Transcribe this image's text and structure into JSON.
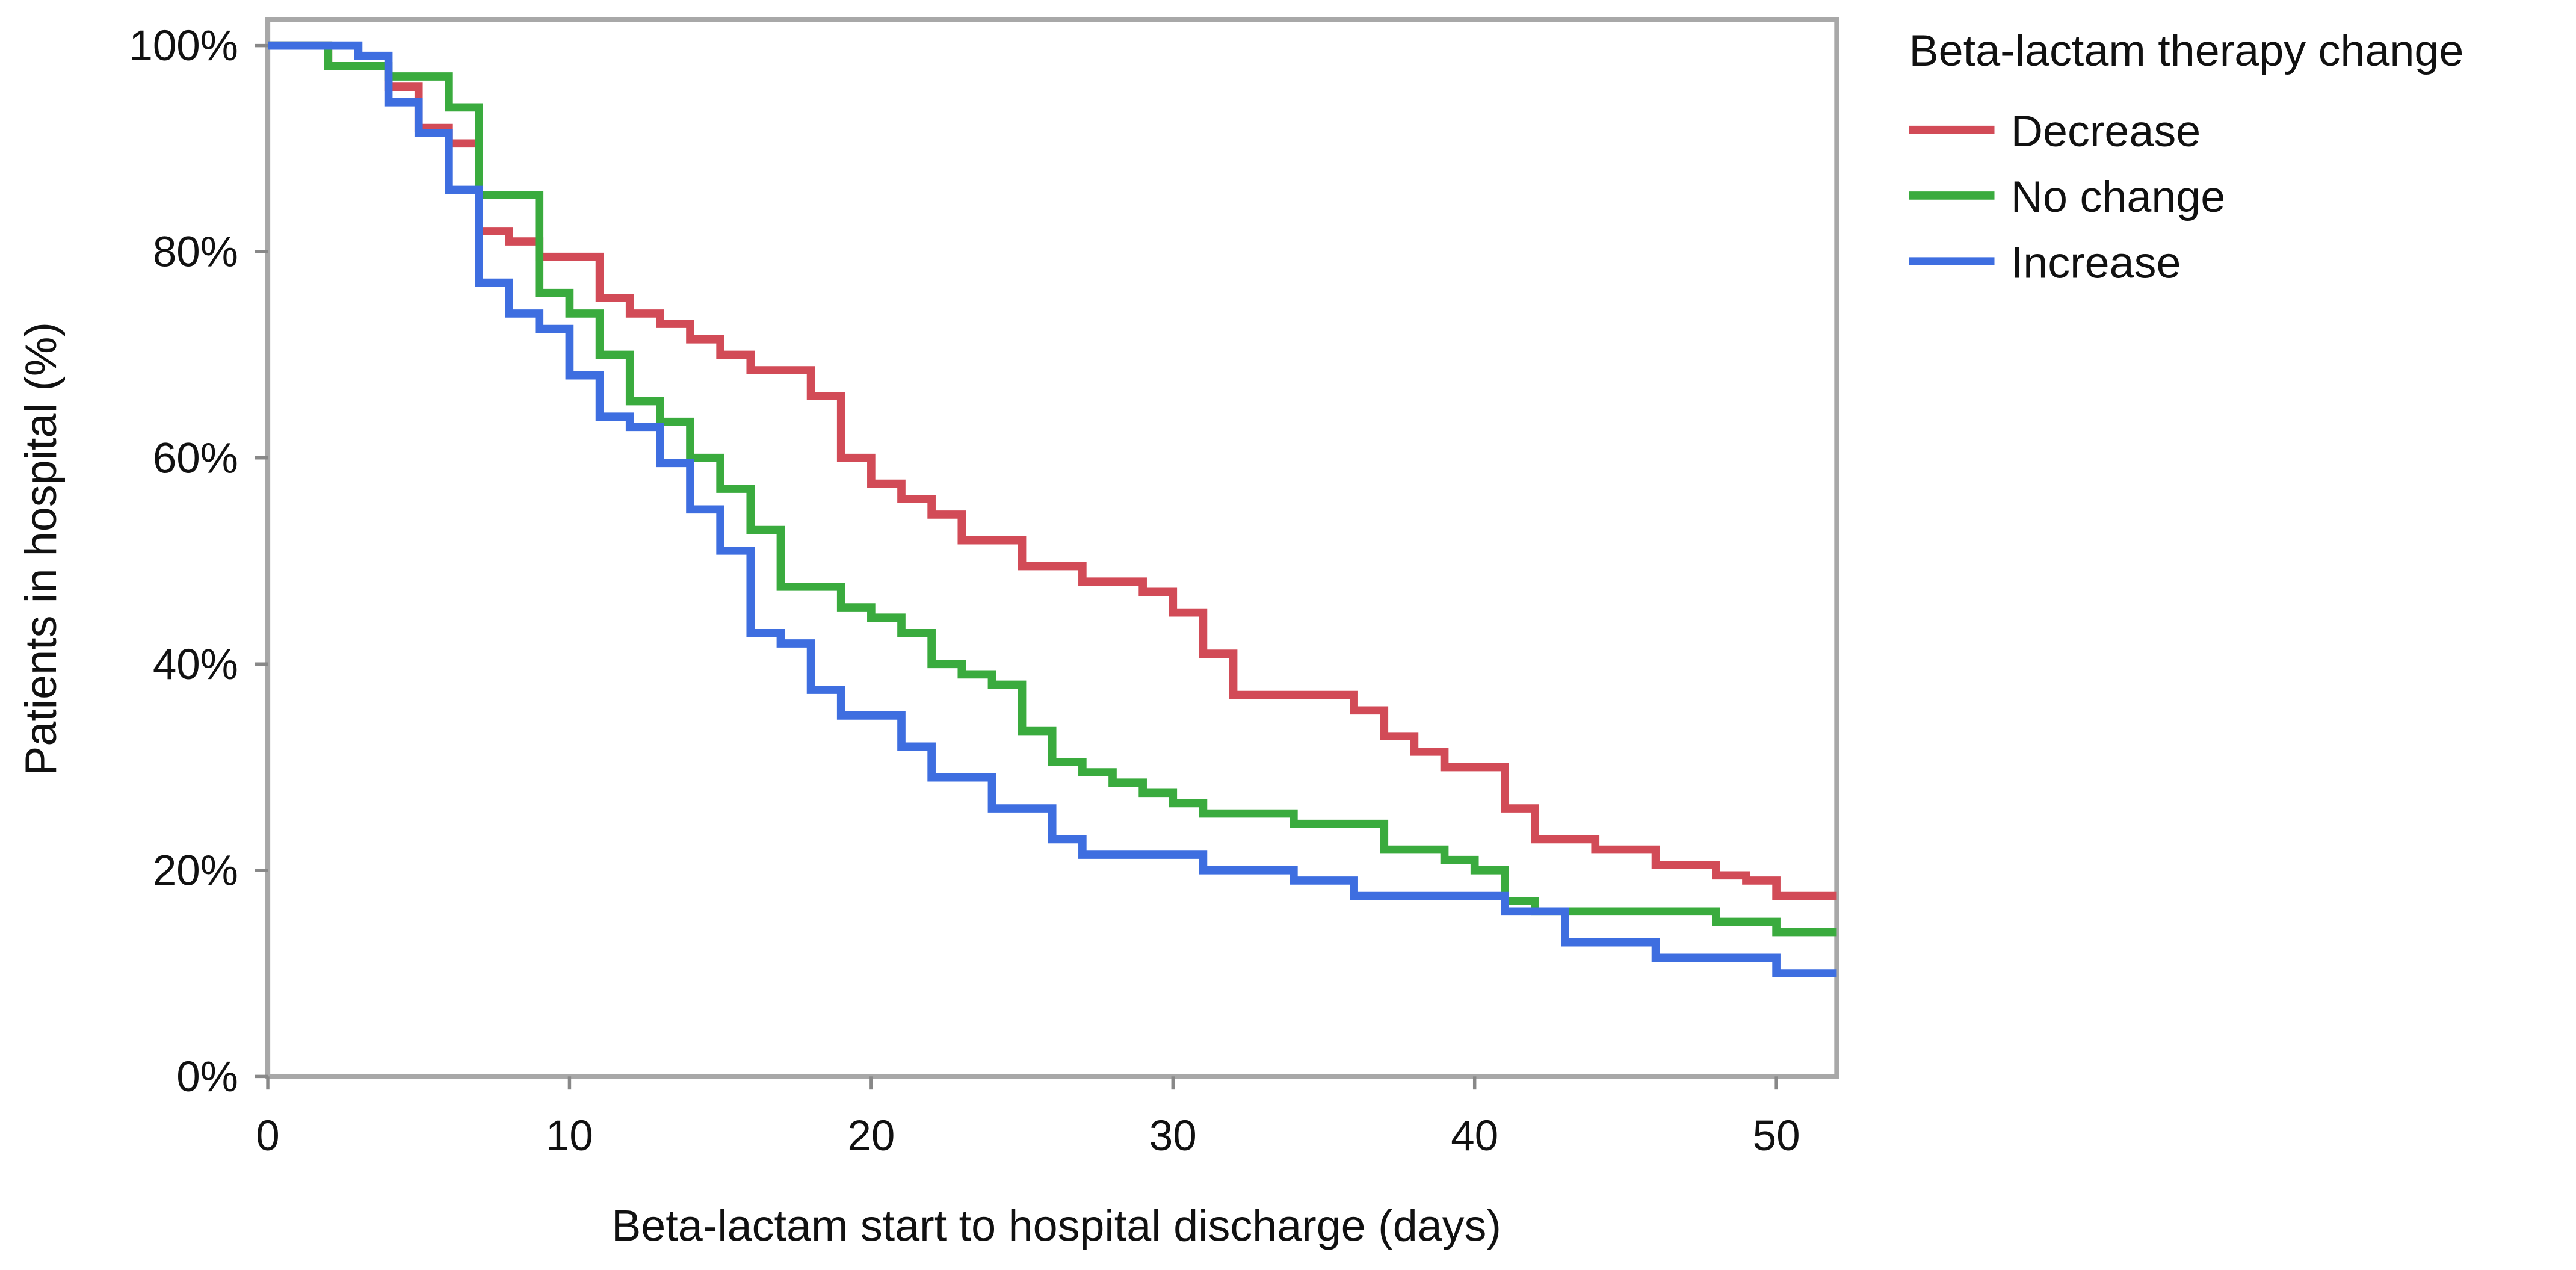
{
  "chart_data": {
    "type": "step",
    "xlabel": "Beta-lactam start to hospital discharge (days)",
    "ylabel": "Patients in hospital (%)",
    "legend_title": "Beta-lactam therapy change",
    "legend": "right",
    "xlim": [
      0,
      52
    ],
    "ylim": [
      0,
      102.5
    ],
    "xticks": [
      0,
      10,
      20,
      30,
      40,
      50
    ],
    "yticks": [
      {
        "value": 0,
        "label": "0%"
      },
      {
        "value": 20,
        "label": "20%"
      },
      {
        "value": 40,
        "label": "40%"
      },
      {
        "value": 60,
        "label": "60%"
      },
      {
        "value": 80,
        "label": "80%"
      },
      {
        "value": 100,
        "label": "100%"
      }
    ],
    "series": [
      {
        "name": "Decrease",
        "color": "#d24b57",
        "x": [
          0,
          2,
          4,
          5,
          6,
          7,
          8,
          9,
          11,
          12,
          13,
          14,
          15,
          16,
          18,
          19,
          20,
          21,
          22,
          23,
          25,
          27,
          29,
          30,
          31,
          32,
          36,
          37,
          38,
          39,
          41,
          42,
          44,
          46,
          48,
          49,
          50,
          52
        ],
        "values": [
          100,
          98,
          96,
          92,
          90.5,
          82,
          81,
          79.5,
          75.5,
          74,
          73,
          71.5,
          70,
          68.5,
          66,
          60,
          57.5,
          56,
          54.5,
          52,
          49.5,
          48,
          47,
          45,
          41,
          37,
          35.5,
          33,
          31.5,
          30,
          26,
          23,
          22,
          20.5,
          19.5,
          19,
          17.5,
          17.5
        ]
      },
      {
        "name": "No change",
        "color": "#3aab3e",
        "x": [
          0,
          2,
          4,
          6,
          7,
          9,
          10,
          11,
          12,
          13,
          14,
          15,
          16,
          17,
          19,
          20,
          21,
          22,
          23,
          24,
          25,
          26,
          27,
          28,
          29,
          30,
          31,
          34,
          37,
          39,
          40,
          41,
          42,
          48,
          50,
          52
        ],
        "values": [
          100,
          98,
          97,
          94,
          85.5,
          76,
          74,
          70,
          65.5,
          63.5,
          60,
          57,
          53,
          47.5,
          45.5,
          44.5,
          43,
          40,
          39,
          38,
          33.5,
          30.5,
          29.5,
          28.5,
          27.5,
          26.5,
          25.5,
          24.5,
          22,
          21,
          20,
          17,
          16,
          15,
          14,
          14
        ]
      },
      {
        "name": "Increase",
        "color": "#3e6ee0",
        "x": [
          0,
          3,
          4,
          5,
          6,
          7,
          8,
          9,
          10,
          11,
          12,
          13,
          14,
          15,
          16,
          17,
          18,
          19,
          21,
          22,
          24,
          26,
          27,
          31,
          34,
          36,
          41,
          43,
          46,
          50,
          52
        ],
        "values": [
          100,
          99,
          94.5,
          91.5,
          86,
          77,
          74,
          72.5,
          68,
          64,
          63,
          59.5,
          55,
          51,
          43,
          42,
          37.5,
          35,
          32,
          29,
          26,
          23,
          21.5,
          20,
          19,
          17.5,
          16,
          13,
          11.5,
          10,
          10
        ]
      }
    ]
  }
}
